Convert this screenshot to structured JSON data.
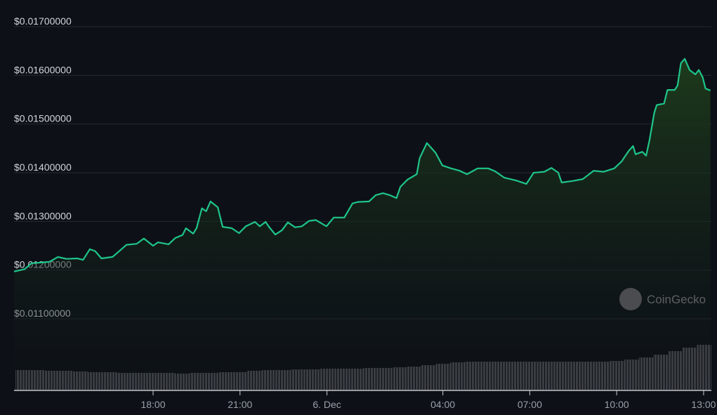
{
  "chart_data": {
    "type": "area",
    "title": "",
    "xlabel": "",
    "ylabel": "",
    "ylim": [
      0.0107,
      0.017
    ],
    "grid": true,
    "line_color": "#1fc48a",
    "fill_color": "#1c3a1c",
    "volume_color": "#3a3d42",
    "y_ticks": [
      {
        "value": 0.017,
        "label": "$0.01700000"
      },
      {
        "value": 0.016,
        "label": "$0.01600000"
      },
      {
        "value": 0.015,
        "label": "$0.01500000"
      },
      {
        "value": 0.014,
        "label": "$0.01400000"
      },
      {
        "value": 0.013,
        "label": "$0.01300000"
      },
      {
        "value": 0.012,
        "label": "$0.01200000"
      },
      {
        "value": 0.011,
        "label": "$0.01100000"
      }
    ],
    "x_ticks": [
      {
        "time": "18:00",
        "label": "18:00"
      },
      {
        "time": "21:00",
        "label": "21:00"
      },
      {
        "time": "00:00",
        "label": "6. Dec"
      },
      {
        "time": "04:00",
        "label": "04:00"
      },
      {
        "time": "07:00",
        "label": "07:00"
      },
      {
        "time": "10:00",
        "label": "10:00"
      },
      {
        "time": "13:00",
        "label": "13:00"
      }
    ],
    "price_series": [
      [
        "13:12",
        0.01197
      ],
      [
        "13:34",
        0.01202
      ],
      [
        "13:48",
        0.01214
      ],
      [
        "14:25",
        0.01217
      ],
      [
        "14:43",
        0.01227
      ],
      [
        "15:01",
        0.01223
      ],
      [
        "15:23",
        0.01224
      ],
      [
        "15:35",
        0.01221
      ],
      [
        "15:49",
        0.01243
      ],
      [
        "16:00",
        0.01239
      ],
      [
        "16:13",
        0.01224
      ],
      [
        "16:36",
        0.01227
      ],
      [
        "16:50",
        0.01239
      ],
      [
        "17:05",
        0.01252
      ],
      [
        "17:26",
        0.01254
      ],
      [
        "17:41",
        0.01265
      ],
      [
        "17:51",
        0.01257
      ],
      [
        "18:00",
        0.0125
      ],
      [
        "18:10",
        0.01257
      ],
      [
        "18:32",
        0.01253
      ],
      [
        "18:46",
        0.01266
      ],
      [
        "19:01",
        0.01272
      ],
      [
        "19:08",
        0.01286
      ],
      [
        "19:23",
        0.01275
      ],
      [
        "19:30",
        0.01286
      ],
      [
        "19:41",
        0.01327
      ],
      [
        "19:50",
        0.01321
      ],
      [
        "19:59",
        0.01341
      ],
      [
        "20:14",
        0.01329
      ],
      [
        "20:24",
        0.01289
      ],
      [
        "20:43",
        0.01286
      ],
      [
        "20:58",
        0.01276
      ],
      [
        "21:12",
        0.0129
      ],
      [
        "21:31",
        0.01299
      ],
      [
        "21:41",
        0.0129
      ],
      [
        "21:53",
        0.01299
      ],
      [
        "22:00",
        0.01289
      ],
      [
        "22:13",
        0.01273
      ],
      [
        "22:27",
        0.01282
      ],
      [
        "22:39",
        0.01298
      ],
      [
        "22:54",
        0.01288
      ],
      [
        "23:08",
        0.0129
      ],
      [
        "23:23",
        0.01301
      ],
      [
        "23:37",
        0.01303
      ],
      [
        "23:59",
        0.0129
      ],
      [
        "00:14",
        0.01308
      ],
      [
        "00:36",
        0.01308
      ],
      [
        "00:53",
        0.01337
      ],
      [
        "01:04",
        0.0134
      ],
      [
        "01:27",
        0.01341
      ],
      [
        "01:41",
        0.01354
      ],
      [
        "01:56",
        0.01358
      ],
      [
        "02:10",
        0.01354
      ],
      [
        "02:24",
        0.01348
      ],
      [
        "02:32",
        0.01371
      ],
      [
        "02:47",
        0.01386
      ],
      [
        "03:06",
        0.01397
      ],
      [
        "03:12",
        0.0143
      ],
      [
        "03:27",
        0.01461
      ],
      [
        "03:45",
        0.01441
      ],
      [
        "03:59",
        0.01415
      ],
      [
        "04:17",
        0.01409
      ],
      [
        "04:35",
        0.01404
      ],
      [
        "04:50",
        0.01397
      ],
      [
        "05:12",
        0.01409
      ],
      [
        "05:34",
        0.01409
      ],
      [
        "05:48",
        0.01403
      ],
      [
        "06:07",
        0.0139
      ],
      [
        "06:32",
        0.01384
      ],
      [
        "06:53",
        0.01377
      ],
      [
        "07:08",
        0.014
      ],
      [
        "07:30",
        0.01402
      ],
      [
        "07:45",
        0.0141
      ],
      [
        "07:59",
        0.014
      ],
      [
        "08:06",
        0.0138
      ],
      [
        "08:28",
        0.01383
      ],
      [
        "08:50",
        0.01387
      ],
      [
        "09:12",
        0.01404
      ],
      [
        "09:33",
        0.01402
      ],
      [
        "09:55",
        0.01409
      ],
      [
        "10:10",
        0.01423
      ],
      [
        "10:25",
        0.01445
      ],
      [
        "10:34",
        0.01455
      ],
      [
        "10:39",
        0.01438
      ],
      [
        "10:53",
        0.01443
      ],
      [
        "11:01",
        0.01435
      ],
      [
        "11:08",
        0.01467
      ],
      [
        "11:18",
        0.01524
      ],
      [
        "11:23",
        0.01539
      ],
      [
        "11:38",
        0.01542
      ],
      [
        "11:45",
        0.0157
      ],
      [
        "12:00",
        0.0157
      ],
      [
        "12:06",
        0.01579
      ],
      [
        "12:13",
        0.01625
      ],
      [
        "12:21",
        0.01634
      ],
      [
        "12:31",
        0.01611
      ],
      [
        "12:43",
        0.01602
      ],
      [
        "12:50",
        0.01611
      ],
      [
        "12:58",
        0.01596
      ],
      [
        "13:04",
        0.01573
      ],
      [
        "13:14",
        0.01569
      ]
    ],
    "volume_relative": [
      28,
      28,
      27,
      27,
      26,
      25,
      25,
      24,
      24,
      24,
      24,
      23,
      24,
      24,
      25,
      25,
      27,
      28,
      28,
      29,
      29,
      30,
      30,
      30,
      31,
      31,
      32,
      33,
      35,
      37,
      39,
      40,
      40,
      40,
      40,
      40,
      40,
      40,
      40,
      40,
      40,
      41,
      43,
      46,
      50,
      55,
      60,
      64
    ]
  },
  "watermark": {
    "text": "CoinGecko"
  }
}
